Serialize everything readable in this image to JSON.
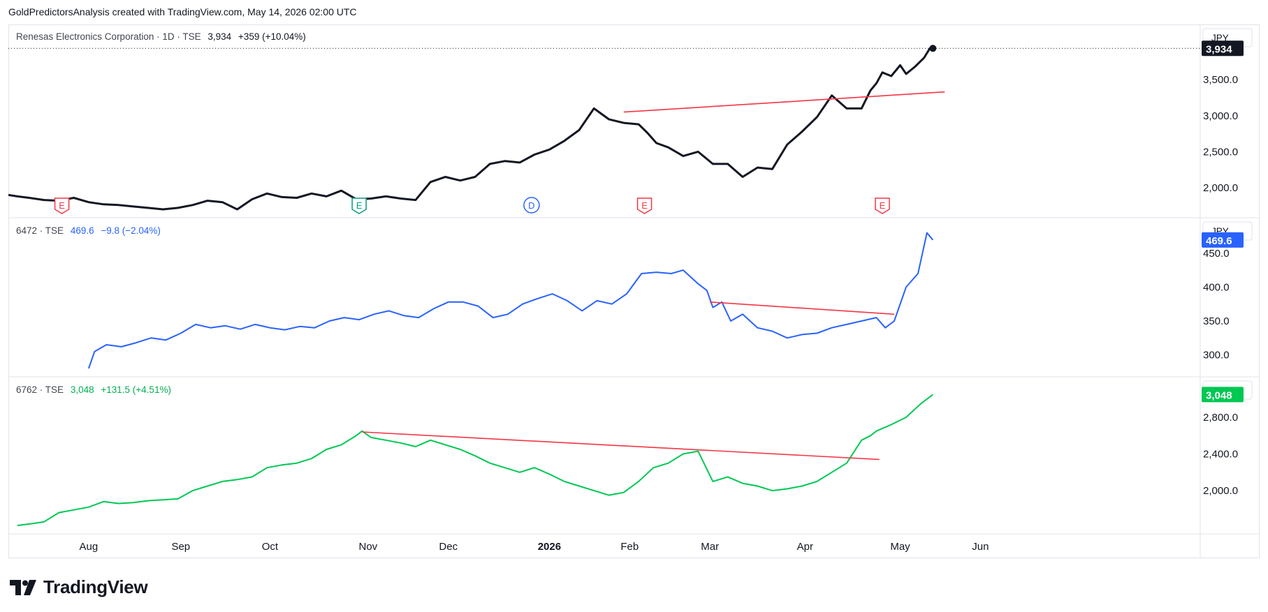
{
  "attribution": "GoldPredictorsAnalysis created with TradingView.com, May 14, 2026 02:00 UTC",
  "brand": {
    "name": "TradingView",
    "logo_icon": "tradingview-logo-icon"
  },
  "colors": {
    "pane1": "#131722",
    "pane2": "#2962ff",
    "pane3": "#00c853",
    "trendline": "#f23645",
    "event_e": "#f23645",
    "event_e_green": "#089981",
    "event_d": "#2962ff"
  },
  "x_axis": {
    "labels": [
      {
        "t": "Aug",
        "d": 27
      },
      {
        "t": "Sep",
        "d": 58
      },
      {
        "t": "Oct",
        "d": 88
      },
      {
        "t": "Nov",
        "d": 121
      },
      {
        "t": "Dec",
        "d": 148
      },
      {
        "t": "2026",
        "d": 182,
        "bold": true
      },
      {
        "t": "Feb",
        "d": 209
      },
      {
        "t": "Mar",
        "d": 236
      },
      {
        "t": "Apr",
        "d": 268
      },
      {
        "t": "May",
        "d": 300
      },
      {
        "t": "Jun",
        "d": 327
      }
    ],
    "start": "2025-07-04",
    "end": "2026-06-16"
  },
  "chart_data": [
    {
      "type": "line",
      "symbol": "Renesas Electronics Corporation · 1D · TSE",
      "last": "3,934",
      "change": "+359 (+10.04%)",
      "currency": "JPY",
      "last_label": "3,934",
      "ylim": [
        1700,
        4150
      ],
      "yticks": [
        "2,000.0",
        "2,500.0",
        "3,000.0",
        "3,500.0"
      ],
      "ytick_values": [
        2000,
        2500,
        3000,
        3500
      ],
      "series": [
        {
          "x": [
            0,
            3,
            7,
            12,
            17,
            22,
            27,
            32,
            37,
            42,
            47,
            52,
            57,
            62,
            67,
            72,
            77,
            82,
            87,
            92,
            97,
            102,
            107,
            112,
            117,
            122,
            127,
            132,
            137,
            142,
            147,
            152,
            157,
            162,
            167,
            172,
            177,
            182,
            187,
            192,
            197,
            202,
            207,
            212,
            215,
            218,
            222,
            227,
            232,
            237,
            242,
            247,
            252,
            257,
            262,
            267,
            272,
            277,
            282,
            287,
            290,
            292,
            294,
            297,
            300,
            302,
            305,
            308,
            310,
            311
          ],
          "y": [
            1900,
            1880,
            1860,
            1830,
            1820,
            1860,
            1800,
            1770,
            1760,
            1740,
            1720,
            1700,
            1720,
            1760,
            1820,
            1800,
            1700,
            1840,
            1920,
            1870,
            1860,
            1920,
            1880,
            1960,
            1840,
            1850,
            1880,
            1850,
            1830,
            2080,
            2150,
            2100,
            2150,
            2330,
            2370,
            2350,
            2460,
            2530,
            2650,
            2800,
            3100,
            2950,
            2900,
            2880,
            2760,
            2620,
            2560,
            2440,
            2500,
            2330,
            2330,
            2150,
            2280,
            2260,
            2600,
            2780,
            2980,
            3280,
            3100,
            3100,
            3350,
            3450,
            3600,
            3550,
            3700,
            3580,
            3680,
            3800,
            3934,
            3934
          ]
        }
      ],
      "trendline": {
        "x": [
          207,
          315
        ],
        "y": [
          3050,
          3330
        ]
      },
      "events": [
        {
          "d": 18,
          "t": "E",
          "k": "e"
        },
        {
          "d": 118,
          "t": "E",
          "k": "g"
        },
        {
          "d": 176,
          "t": "D",
          "k": "d"
        },
        {
          "d": 214,
          "t": "E",
          "k": "e"
        },
        {
          "d": 294,
          "t": "E",
          "k": "e"
        }
      ]
    },
    {
      "type": "line",
      "symbol": "6472 · TSE",
      "last": "469.6",
      "change": "−9.8 (−2.04%)",
      "currency": "JPY",
      "last_label": "469.6",
      "ylim": [
        280,
        490
      ],
      "yticks": [
        "300.0",
        "350.0",
        "400.0",
        "450.0"
      ],
      "ytick_values": [
        300,
        350,
        400,
        450
      ],
      "series": [
        {
          "x": [
            27,
            29,
            33,
            38,
            43,
            48,
            53,
            58,
            63,
            68,
            73,
            78,
            83,
            88,
            93,
            98,
            103,
            108,
            113,
            118,
            123,
            128,
            133,
            138,
            143,
            148,
            153,
            158,
            163,
            168,
            173,
            178,
            183,
            188,
            193,
            198,
            203,
            208,
            213,
            218,
            223,
            227,
            232,
            235,
            237,
            240,
            243,
            247,
            252,
            257,
            262,
            267,
            272,
            277,
            282,
            287,
            292,
            295,
            298,
            302,
            306,
            309,
            311
          ],
          "y": [
            280,
            305,
            315,
            312,
            318,
            325,
            322,
            332,
            345,
            340,
            343,
            338,
            345,
            340,
            337,
            342,
            340,
            350,
            355,
            352,
            360,
            365,
            358,
            355,
            368,
            378,
            378,
            372,
            355,
            360,
            375,
            383,
            390,
            380,
            365,
            380,
            375,
            390,
            420,
            422,
            420,
            425,
            405,
            395,
            370,
            378,
            350,
            360,
            340,
            335,
            325,
            330,
            332,
            340,
            345,
            350,
            355,
            340,
            350,
            400,
            420,
            480,
            469.6
          ]
        }
      ],
      "trendline": {
        "x": [
          236,
          298
        ],
        "y": [
          378,
          360
        ]
      }
    },
    {
      "type": "line",
      "symbol": "6762 · TSE",
      "last": "3,048",
      "change": "+131.5 (+4.51%)",
      "currency": "JPY",
      "last_label": "3,048",
      "ylim": [
        1620,
        3150
      ],
      "yticks": [
        "2,000.0",
        "2,400.0",
        "2,800.0"
      ],
      "ytick_values": [
        2000,
        2400,
        2800
      ],
      "series": [
        {
          "x": [
            3,
            8,
            12,
            17,
            22,
            27,
            32,
            37,
            42,
            47,
            52,
            57,
            62,
            67,
            72,
            77,
            82,
            87,
            92,
            97,
            102,
            107,
            112,
            117,
            119,
            122,
            127,
            132,
            137,
            142,
            147,
            152,
            157,
            162,
            167,
            172,
            177,
            182,
            187,
            192,
            197,
            202,
            207,
            212,
            217,
            222,
            227,
            232,
            237,
            242,
            247,
            252,
            257,
            262,
            267,
            272,
            277,
            282,
            287,
            290,
            292,
            297,
            302,
            307,
            311
          ],
          "y": [
            1620,
            1640,
            1660,
            1760,
            1790,
            1820,
            1880,
            1860,
            1870,
            1890,
            1900,
            1910,
            2000,
            2050,
            2100,
            2120,
            2150,
            2250,
            2280,
            2300,
            2350,
            2450,
            2500,
            2600,
            2650,
            2580,
            2550,
            2520,
            2480,
            2550,
            2500,
            2450,
            2380,
            2300,
            2250,
            2200,
            2250,
            2180,
            2100,
            2050,
            2000,
            1950,
            1980,
            2100,
            2250,
            2300,
            2400,
            2430,
            2100,
            2150,
            2080,
            2050,
            2000,
            2020,
            2050,
            2100,
            2200,
            2300,
            2550,
            2600,
            2650,
            2720,
            2800,
            2950,
            3048
          ]
        }
      ],
      "trendline": {
        "x": [
          119,
          293
        ],
        "y": [
          2640,
          2340
        ]
      }
    }
  ]
}
